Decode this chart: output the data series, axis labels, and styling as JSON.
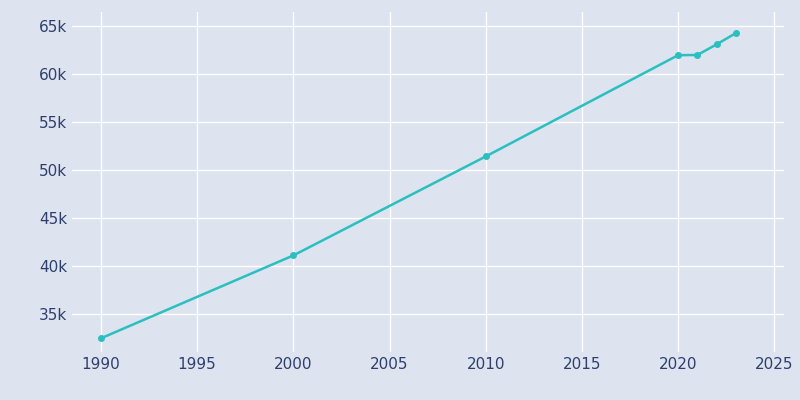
{
  "years": [
    1990,
    2000,
    2010,
    2020,
    2021,
    2022,
    2023
  ],
  "population": [
    32427,
    41081,
    51418,
    61993,
    62012,
    63123,
    64297
  ],
  "line_color": "#2bbfbf",
  "marker_style": "o",
  "marker_size": 4,
  "line_width": 1.8,
  "bg_color": "#dde3ef",
  "fig_bg_color": "#dde3ef",
  "grid_color": "#ffffff",
  "tick_color": "#2e3f6e",
  "xlim": [
    1988.5,
    2025.5
  ],
  "ylim": [
    31000,
    66500
  ],
  "xticks": [
    1990,
    1995,
    2000,
    2005,
    2010,
    2015,
    2020,
    2025
  ],
  "yticks": [
    35000,
    40000,
    45000,
    50000,
    55000,
    60000,
    65000
  ],
  "ytick_labels": [
    "35k",
    "40k",
    "45k",
    "50k",
    "55k",
    "60k",
    "65k"
  ],
  "xtick_labels": [
    "1990",
    "1995",
    "2000",
    "2005",
    "2010",
    "2015",
    "2020",
    "2025"
  ],
  "tick_fontsize": 11
}
